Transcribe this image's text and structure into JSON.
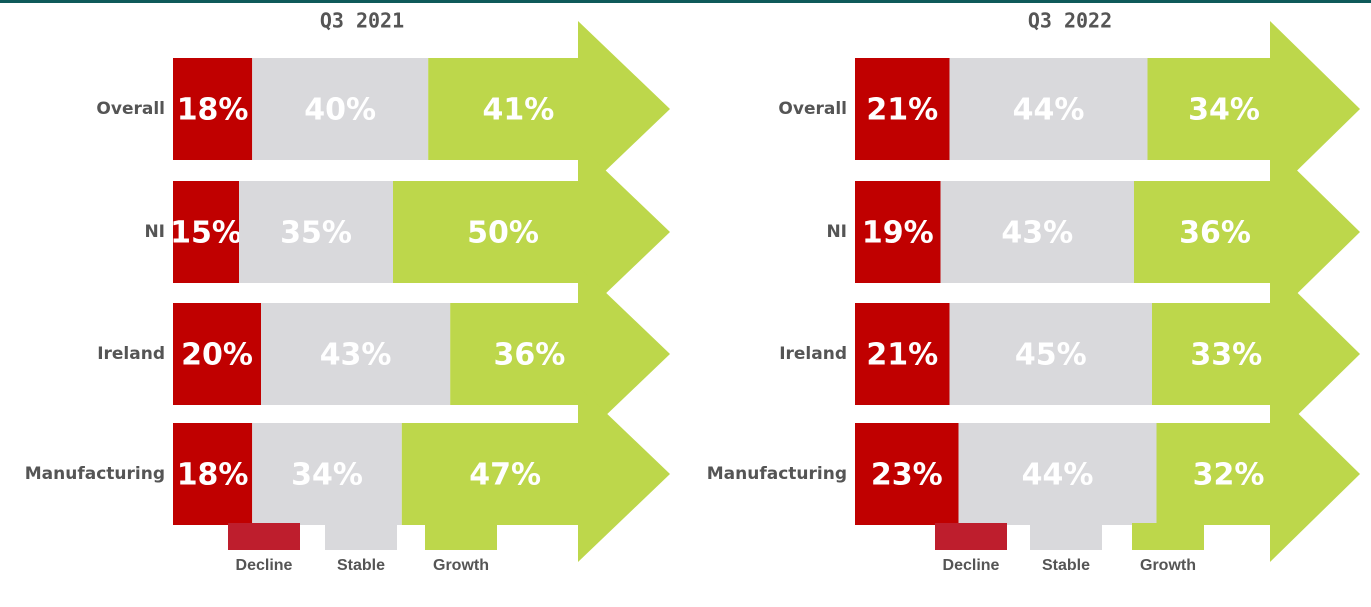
{
  "chart_data": [
    {
      "type": "stacked-bar",
      "title": "Q3 2021",
      "categories": [
        "Overall",
        "NI",
        "Ireland",
        "Manufacturing"
      ],
      "series": [
        {
          "name": "Decline",
          "color": "#c00000",
          "values": [
            18,
            15,
            20,
            18
          ],
          "value_labels": [
            "18%",
            "15%",
            "20%",
            "18%"
          ]
        },
        {
          "name": "Stable",
          "color": "#d9d9dc",
          "values": [
            40,
            35,
            43,
            34
          ],
          "value_labels": [
            "40%",
            "35%",
            "43%",
            "34%"
          ]
        },
        {
          "name": "Growth",
          "color": "#bdd74b",
          "values": [
            41,
            50,
            36,
            47
          ],
          "value_labels": [
            "41%",
            "50%",
            "36%",
            "47%"
          ]
        }
      ]
    },
    {
      "type": "stacked-bar",
      "title": "Q3 2022",
      "categories": [
        "Overall",
        "NI",
        "Ireland",
        "Manufacturing"
      ],
      "series": [
        {
          "name": "Decline",
          "color": "#c00000",
          "values": [
            21,
            19,
            21,
            23
          ],
          "value_labels": [
            "21%",
            "19%",
            "21%",
            "23%"
          ]
        },
        {
          "name": "Stable",
          "color": "#d9d9dc",
          "values": [
            44,
            43,
            45,
            44
          ],
          "value_labels": [
            "44%",
            "43%",
            "45%",
            "44%"
          ]
        },
        {
          "name": "Growth",
          "color": "#bdd74b",
          "values": [
            34,
            36,
            33,
            32
          ],
          "value_labels": [
            "34%",
            "36%",
            "33%",
            "32%"
          ]
        }
      ]
    }
  ]
}
